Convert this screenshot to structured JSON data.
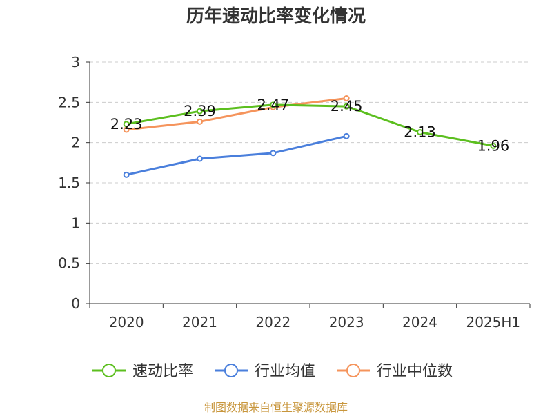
{
  "chart_data": {
    "type": "line",
    "title": "历年速动比率变化情况",
    "categories": [
      "2020",
      "2021",
      "2022",
      "2023",
      "2024",
      "2025H1"
    ],
    "ylim": [
      0,
      3
    ],
    "yticks": [
      "0",
      "0.5",
      "1",
      "1.5",
      "2",
      "2.5",
      "3"
    ],
    "grid": true,
    "legend_position": "bottom",
    "series": [
      {
        "name": "速动比率",
        "color": "#5cbf1f",
        "values": [
          2.23,
          2.39,
          2.47,
          2.45,
          2.13,
          1.96
        ],
        "labels": [
          "2.23",
          "2.39",
          "2.47",
          "2.45",
          "2.13",
          "1.96"
        ]
      },
      {
        "name": "行业均值",
        "color": "#4a7fdc",
        "values": [
          1.6,
          1.8,
          1.87,
          2.08,
          null,
          null
        ]
      },
      {
        "name": "行业中位数",
        "color": "#f5945c",
        "values": [
          2.16,
          2.26,
          2.44,
          2.55,
          null,
          null
        ]
      }
    ]
  },
  "source": "制图数据来自恒生聚源数据库"
}
